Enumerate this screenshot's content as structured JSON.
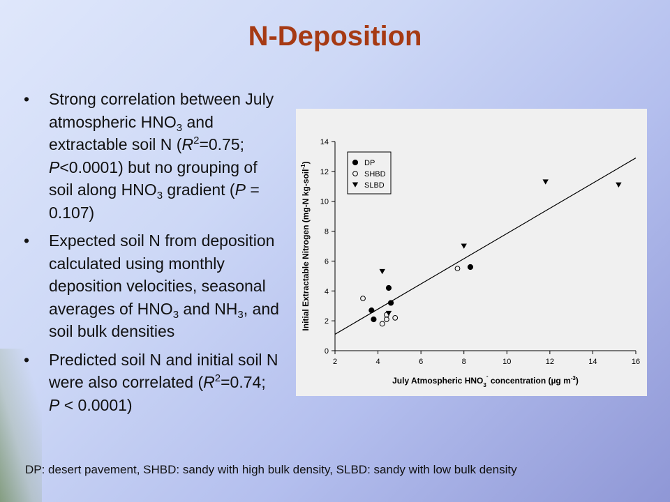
{
  "slide": {
    "title": "N-Deposition",
    "bullets": [
      {
        "symbol": "•",
        "parts": [
          {
            "t": "Strong correlation between July atmospheric HNO"
          },
          {
            "t": "3",
            "sub": true
          },
          {
            "t": " and extractable soil N ("
          },
          {
            "t": "R",
            "i": true
          },
          {
            "t": "2",
            "sup": true
          },
          {
            "t": "=0.75; "
          },
          {
            "t": "P",
            "i": true
          },
          {
            "t": "<0.0001) but no grouping of soil along HNO"
          },
          {
            "t": "3",
            "sub": true
          },
          {
            "t": " gradient ("
          },
          {
            "t": "P",
            "i": true
          },
          {
            "t": " = 0.107)"
          }
        ]
      },
      {
        "symbol": "•",
        "parts": [
          {
            "t": "Expected soil N from deposition calculated using monthly deposition velocities, seasonal averages of HNO"
          },
          {
            "t": "3",
            "sub": true
          },
          {
            "t": " and NH"
          },
          {
            "t": "3",
            "sub": true
          },
          {
            "t": ", and soil bulk densities"
          }
        ]
      },
      {
        "symbol": "•",
        "parts": [
          {
            "t": "Predicted soil N and initial soil N were also correlated ("
          },
          {
            "t": "R",
            "i": true
          },
          {
            "t": "2",
            "sup": true
          },
          {
            "t": "=0.74; "
          },
          {
            "t": "P",
            "i": true
          },
          {
            "t": " < 0.0001)"
          }
        ]
      }
    ],
    "footnote": "DP: desert pavement, SHBD: sandy with high bulk density, SLBD: sandy with low bulk density",
    "colors": {
      "title": "#a63a14",
      "text": "#111111",
      "chart_bg": "#f0f0f0"
    }
  },
  "chart_data": {
    "type": "scatter",
    "title": "",
    "xlabel": "July Atmospheric HNO3- concentration (µg m-3)",
    "ylabel": "Initial Extractable Nitrogen (mg-N kg-soil-1)",
    "xlim": [
      2,
      16
    ],
    "ylim": [
      0,
      14
    ],
    "xticks": [
      2,
      4,
      6,
      8,
      10,
      12,
      14,
      16
    ],
    "yticks": [
      0,
      2,
      4,
      6,
      8,
      10,
      12,
      14
    ],
    "grid": false,
    "legend_position": "top-left",
    "series": [
      {
        "name": "DP",
        "marker": "filled-circle",
        "points": [
          [
            3.7,
            2.7
          ],
          [
            3.8,
            2.1
          ],
          [
            4.5,
            4.2
          ],
          [
            4.6,
            3.2
          ],
          [
            8.3,
            5.6
          ]
        ]
      },
      {
        "name": "SHBD",
        "marker": "open-circle",
        "points": [
          [
            3.3,
            3.5
          ],
          [
            4.2,
            1.8
          ],
          [
            4.4,
            2.1
          ],
          [
            4.4,
            2.4
          ],
          [
            4.8,
            2.2
          ],
          [
            7.7,
            5.5
          ]
        ]
      },
      {
        "name": "SLBD",
        "marker": "filled-triangle-down",
        "points": [
          [
            4.2,
            5.3
          ],
          [
            4.5,
            2.5
          ],
          [
            8.0,
            7.0
          ],
          [
            11.8,
            11.3
          ],
          [
            15.2,
            11.1
          ]
        ]
      }
    ],
    "fit_line": {
      "points": [
        [
          2,
          1.1
        ],
        [
          16,
          12.9
        ]
      ]
    }
  }
}
